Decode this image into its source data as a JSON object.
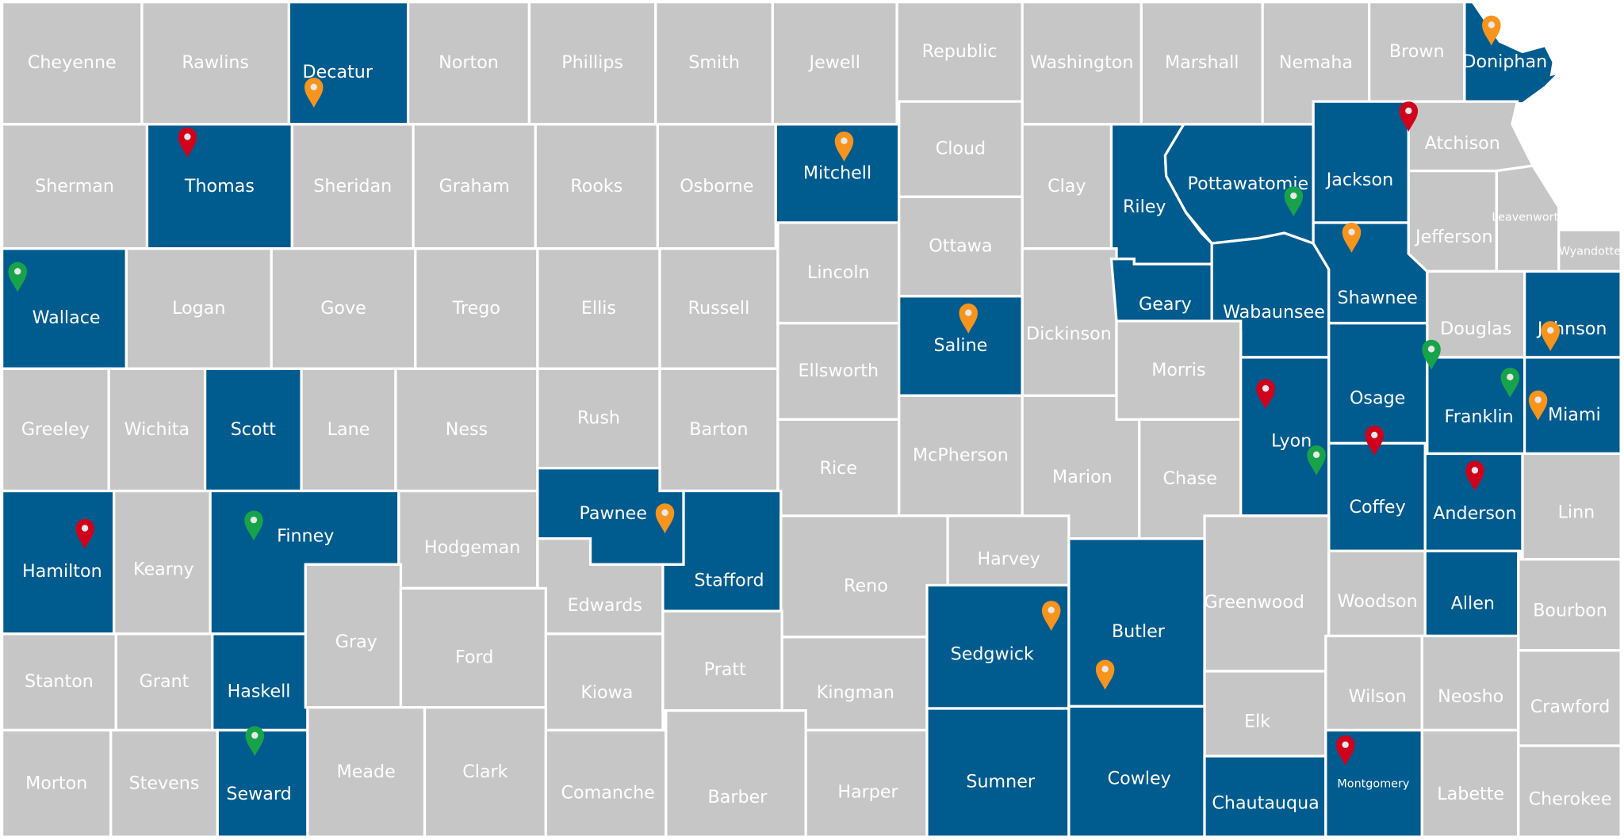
{
  "colors": {
    "highlighted": "#005b8f",
    "default": "#c6c6c6",
    "border": "#ffffff",
    "label": "#ffffff",
    "pin_orange": "#f7941d",
    "pin_red": "#d0021b",
    "pin_green": "#17a34a"
  },
  "counties": [
    {
      "name": "Cheyenne",
      "highlighted": false
    },
    {
      "name": "Rawlins",
      "highlighted": false
    },
    {
      "name": "Decatur",
      "highlighted": true
    },
    {
      "name": "Norton",
      "highlighted": false
    },
    {
      "name": "Phillips",
      "highlighted": false
    },
    {
      "name": "Smith",
      "highlighted": false
    },
    {
      "name": "Jewell",
      "highlighted": false
    },
    {
      "name": "Republic",
      "highlighted": false
    },
    {
      "name": "Washington",
      "highlighted": false
    },
    {
      "name": "Marshall",
      "highlighted": false
    },
    {
      "name": "Nemaha",
      "highlighted": false
    },
    {
      "name": "Brown",
      "highlighted": false
    },
    {
      "name": "Doniphan",
      "highlighted": true
    },
    {
      "name": "Sherman",
      "highlighted": false
    },
    {
      "name": "Thomas",
      "highlighted": true
    },
    {
      "name": "Sheridan",
      "highlighted": false
    },
    {
      "name": "Graham",
      "highlighted": false
    },
    {
      "name": "Rooks",
      "highlighted": false
    },
    {
      "name": "Osborne",
      "highlighted": false
    },
    {
      "name": "Mitchell",
      "highlighted": true
    },
    {
      "name": "Cloud",
      "highlighted": false
    },
    {
      "name": "Clay",
      "highlighted": false
    },
    {
      "name": "Riley",
      "highlighted": true
    },
    {
      "name": "Pottawatomie",
      "highlighted": true
    },
    {
      "name": "Jackson",
      "highlighted": true
    },
    {
      "name": "Atchison",
      "highlighted": false
    },
    {
      "name": "Wallace",
      "highlighted": true
    },
    {
      "name": "Logan",
      "highlighted": false
    },
    {
      "name": "Gove",
      "highlighted": false
    },
    {
      "name": "Trego",
      "highlighted": false
    },
    {
      "name": "Ellis",
      "highlighted": false
    },
    {
      "name": "Russell",
      "highlighted": false
    },
    {
      "name": "Lincoln",
      "highlighted": false
    },
    {
      "name": "Ottawa",
      "highlighted": false
    },
    {
      "name": "Dickinson",
      "highlighted": false
    },
    {
      "name": "Geary",
      "highlighted": true
    },
    {
      "name": "Wabaunsee",
      "highlighted": true
    },
    {
      "name": "Shawnee",
      "highlighted": true
    },
    {
      "name": "Jefferson",
      "highlighted": false
    },
    {
      "name": "Leavenworth",
      "highlighted": false
    },
    {
      "name": "Wyandotte",
      "highlighted": false
    },
    {
      "name": "Douglas",
      "highlighted": false
    },
    {
      "name": "Johnson",
      "highlighted": true
    },
    {
      "name": "Greeley",
      "highlighted": false
    },
    {
      "name": "Wichita",
      "highlighted": false
    },
    {
      "name": "Scott",
      "highlighted": true
    },
    {
      "name": "Lane",
      "highlighted": false
    },
    {
      "name": "Ness",
      "highlighted": false
    },
    {
      "name": "Rush",
      "highlighted": false
    },
    {
      "name": "Barton",
      "highlighted": false
    },
    {
      "name": "Ellsworth",
      "highlighted": false
    },
    {
      "name": "Saline",
      "highlighted": true
    },
    {
      "name": "Rice",
      "highlighted": false
    },
    {
      "name": "McPherson",
      "highlighted": false
    },
    {
      "name": "Marion",
      "highlighted": false
    },
    {
      "name": "Morris",
      "highlighted": false
    },
    {
      "name": "Chase",
      "highlighted": false
    },
    {
      "name": "Lyon",
      "highlighted": true
    },
    {
      "name": "Osage",
      "highlighted": true
    },
    {
      "name": "Franklin",
      "highlighted": true
    },
    {
      "name": "Miami",
      "highlighted": true
    },
    {
      "name": "Hamilton",
      "highlighted": true
    },
    {
      "name": "Kearny",
      "highlighted": false
    },
    {
      "name": "Finney",
      "highlighted": true
    },
    {
      "name": "Hodgeman",
      "highlighted": false
    },
    {
      "name": "Pawnee",
      "highlighted": true
    },
    {
      "name": "Edwards",
      "highlighted": false
    },
    {
      "name": "Stafford",
      "highlighted": true
    },
    {
      "name": "Reno",
      "highlighted": false
    },
    {
      "name": "Harvey",
      "highlighted": false
    },
    {
      "name": "Coffey",
      "highlighted": true
    },
    {
      "name": "Anderson",
      "highlighted": true
    },
    {
      "name": "Linn",
      "highlighted": false
    },
    {
      "name": "Greenwood",
      "highlighted": false
    },
    {
      "name": "Woodson",
      "highlighted": false
    },
    {
      "name": "Allen",
      "highlighted": true
    },
    {
      "name": "Bourbon",
      "highlighted": false
    },
    {
      "name": "Stanton",
      "highlighted": false
    },
    {
      "name": "Grant",
      "highlighted": false
    },
    {
      "name": "Haskell",
      "highlighted": true
    },
    {
      "name": "Gray",
      "highlighted": false
    },
    {
      "name": "Ford",
      "highlighted": false
    },
    {
      "name": "Kiowa",
      "highlighted": false
    },
    {
      "name": "Pratt",
      "highlighted": false
    },
    {
      "name": "Kingman",
      "highlighted": false
    },
    {
      "name": "Sedgwick",
      "highlighted": true
    },
    {
      "name": "Butler",
      "highlighted": true
    },
    {
      "name": "Elk",
      "highlighted": false
    },
    {
      "name": "Wilson",
      "highlighted": false
    },
    {
      "name": "Neosho",
      "highlighted": false
    },
    {
      "name": "Crawford",
      "highlighted": false
    },
    {
      "name": "Morton",
      "highlighted": false
    },
    {
      "name": "Stevens",
      "highlighted": false
    },
    {
      "name": "Seward",
      "highlighted": true
    },
    {
      "name": "Meade",
      "highlighted": false
    },
    {
      "name": "Clark",
      "highlighted": false
    },
    {
      "name": "Comanche",
      "highlighted": false
    },
    {
      "name": "Barber",
      "highlighted": false
    },
    {
      "name": "Harper",
      "highlighted": false
    },
    {
      "name": "Sumner",
      "highlighted": true
    },
    {
      "name": "Cowley",
      "highlighted": true
    },
    {
      "name": "Chautauqua",
      "highlighted": true
    },
    {
      "name": "Montgomery",
      "highlighted": true
    },
    {
      "name": "Labette",
      "highlighted": false
    },
    {
      "name": "Cherokee",
      "highlighted": false
    }
  ],
  "pins": [
    {
      "county": "Doniphan",
      "color": "orange"
    },
    {
      "county": "Decatur",
      "color": "orange"
    },
    {
      "county": "Thomas",
      "color": "red"
    },
    {
      "county": "Mitchell",
      "color": "orange"
    },
    {
      "county": "Pottawatomie",
      "color": "green"
    },
    {
      "county": "Jackson",
      "color": "red"
    },
    {
      "county": "Shawnee",
      "color": "orange"
    },
    {
      "county": "Wallace",
      "color": "green"
    },
    {
      "county": "Saline",
      "color": "orange"
    },
    {
      "county": "Johnson",
      "color": "orange"
    },
    {
      "county": "Franklin",
      "color": "green"
    },
    {
      "county": "Franklin",
      "color": "green"
    },
    {
      "county": "Miami",
      "color": "orange"
    },
    {
      "county": "Lyon",
      "color": "red"
    },
    {
      "county": "Lyon",
      "color": "green"
    },
    {
      "county": "Coffey",
      "color": "red"
    },
    {
      "county": "Anderson",
      "color": "red"
    },
    {
      "county": "Hamilton",
      "color": "red"
    },
    {
      "county": "Finney",
      "color": "green"
    },
    {
      "county": "Pawnee",
      "color": "orange"
    },
    {
      "county": "Sedgwick",
      "color": "orange"
    },
    {
      "county": "Butler",
      "color": "orange"
    },
    {
      "county": "Seward",
      "color": "green"
    },
    {
      "county": "Montgomery",
      "color": "red"
    }
  ]
}
